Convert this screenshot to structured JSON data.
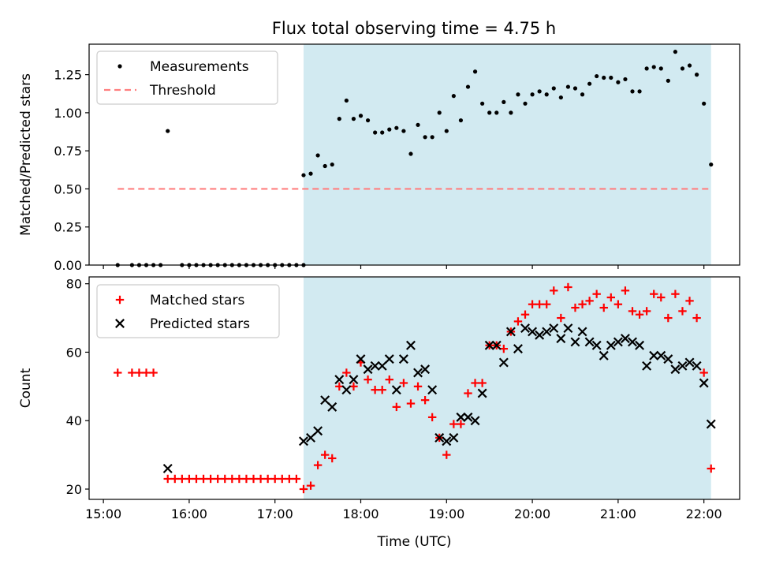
{
  "figure_title": "Flux total observing time = 4.75 h",
  "colors": {
    "shade": "#add8e6",
    "measurements": "#000000",
    "threshold": "#ff7f7f",
    "matched": "#ff0000",
    "predicted": "#000000"
  },
  "chart_data": [
    {
      "type": "scatter",
      "title": "Flux total observing time = 4.75 h",
      "ylabel": "Matched/Predicted stars",
      "xlabel": "",
      "xlim": [
        "14:50",
        "22:25"
      ],
      "ylim": [
        0,
        1.45
      ],
      "yticks": [
        0.0,
        0.25,
        0.5,
        0.75,
        1.0,
        1.25
      ],
      "ytick_labels": [
        "0.00",
        "0.25",
        "0.50",
        "0.75",
        "1.00",
        "1.25"
      ],
      "xticks": [
        "15:00",
        "16:00",
        "17:00",
        "18:00",
        "19:00",
        "20:00",
        "21:00",
        "22:00"
      ],
      "show_xtick_labels": false,
      "legend_position": "upper-left",
      "grid": false,
      "shaded_span": [
        "17:20",
        "22:05"
      ],
      "series": [
        {
          "name": "Measurements",
          "marker": "dot",
          "points": [
            [
              "15:10",
              0.0
            ],
            [
              "15:20",
              0.0
            ],
            [
              "15:25",
              0.0
            ],
            [
              "15:30",
              0.0
            ],
            [
              "15:35",
              0.0
            ],
            [
              "15:40",
              0.0
            ],
            [
              "15:45",
              0.88
            ],
            [
              "15:55",
              0.0
            ],
            [
              "16:00",
              0.0
            ],
            [
              "16:05",
              0.0
            ],
            [
              "16:10",
              0.0
            ],
            [
              "16:15",
              0.0
            ],
            [
              "16:20",
              0.0
            ],
            [
              "16:25",
              0.0
            ],
            [
              "16:30",
              0.0
            ],
            [
              "16:35",
              0.0
            ],
            [
              "16:40",
              0.0
            ],
            [
              "16:45",
              0.0
            ],
            [
              "16:50",
              0.0
            ],
            [
              "16:55",
              0.0
            ],
            [
              "17:00",
              0.0
            ],
            [
              "17:05",
              0.0
            ],
            [
              "17:10",
              0.0
            ],
            [
              "17:15",
              0.0
            ],
            [
              "17:20",
              0.0
            ],
            [
              "17:20",
              0.59
            ],
            [
              "17:25",
              0.6
            ],
            [
              "17:30",
              0.72
            ],
            [
              "17:35",
              0.65
            ],
            [
              "17:40",
              0.66
            ],
            [
              "17:45",
              0.96
            ],
            [
              "17:50",
              1.08
            ],
            [
              "17:55",
              0.96
            ],
            [
              "18:00",
              0.98
            ],
            [
              "18:05",
              0.95
            ],
            [
              "18:10",
              0.87
            ],
            [
              "18:15",
              0.87
            ],
            [
              "18:20",
              0.89
            ],
            [
              "18:25",
              0.9
            ],
            [
              "18:30",
              0.88
            ],
            [
              "18:35",
              0.73
            ],
            [
              "18:40",
              0.92
            ],
            [
              "18:45",
              0.84
            ],
            [
              "18:50",
              0.84
            ],
            [
              "18:55",
              1.0
            ],
            [
              "19:00",
              0.88
            ],
            [
              "19:05",
              1.11
            ],
            [
              "19:10",
              0.95
            ],
            [
              "19:15",
              1.17
            ],
            [
              "19:20",
              1.27
            ],
            [
              "19:25",
              1.06
            ],
            [
              "19:30",
              1.0
            ],
            [
              "19:35",
              1.0
            ],
            [
              "19:40",
              1.07
            ],
            [
              "19:45",
              1.0
            ],
            [
              "19:50",
              1.12
            ],
            [
              "19:55",
              1.06
            ],
            [
              "20:00",
              1.12
            ],
            [
              "20:05",
              1.14
            ],
            [
              "20:10",
              1.12
            ],
            [
              "20:15",
              1.16
            ],
            [
              "20:20",
              1.1
            ],
            [
              "20:25",
              1.17
            ],
            [
              "20:30",
              1.16
            ],
            [
              "20:35",
              1.12
            ],
            [
              "20:40",
              1.19
            ],
            [
              "20:45",
              1.24
            ],
            [
              "20:50",
              1.23
            ],
            [
              "20:55",
              1.23
            ],
            [
              "21:00",
              1.2
            ],
            [
              "21:05",
              1.22
            ],
            [
              "21:10",
              1.14
            ],
            [
              "21:15",
              1.14
            ],
            [
              "21:20",
              1.29
            ],
            [
              "21:25",
              1.3
            ],
            [
              "21:30",
              1.29
            ],
            [
              "21:35",
              1.21
            ],
            [
              "21:40",
              1.4
            ],
            [
              "21:45",
              1.29
            ],
            [
              "21:50",
              1.31
            ],
            [
              "21:55",
              1.25
            ],
            [
              "22:00",
              1.06
            ],
            [
              "22:05",
              0.66
            ]
          ]
        },
        {
          "name": "Threshold",
          "marker": "dashed-line",
          "points": [
            [
              "15:10",
              0.5
            ],
            [
              "22:05",
              0.5
            ]
          ]
        }
      ]
    },
    {
      "type": "scatter",
      "title": "",
      "ylabel": "Count",
      "xlabel": "Time (UTC)",
      "xlim": [
        "14:50",
        "22:25"
      ],
      "ylim": [
        17,
        82
      ],
      "yticks": [
        20,
        40,
        60,
        80
      ],
      "ytick_labels": [
        "20",
        "40",
        "60",
        "80"
      ],
      "xticks": [
        "15:00",
        "16:00",
        "17:00",
        "18:00",
        "19:00",
        "20:00",
        "21:00",
        "22:00"
      ],
      "show_xtick_labels": true,
      "legend_position": "upper-left",
      "grid": false,
      "shaded_span": [
        "17:20",
        "22:05"
      ],
      "series": [
        {
          "name": "Matched stars",
          "marker": "plus",
          "points": [
            [
              "15:10",
              54
            ],
            [
              "15:20",
              54
            ],
            [
              "15:25",
              54
            ],
            [
              "15:30",
              54
            ],
            [
              "15:35",
              54
            ],
            [
              "15:45",
              23
            ],
            [
              "15:50",
              23
            ],
            [
              "15:55",
              23
            ],
            [
              "16:00",
              23
            ],
            [
              "16:05",
              23
            ],
            [
              "16:10",
              23
            ],
            [
              "16:15",
              23
            ],
            [
              "16:20",
              23
            ],
            [
              "16:25",
              23
            ],
            [
              "16:30",
              23
            ],
            [
              "16:35",
              23
            ],
            [
              "16:40",
              23
            ],
            [
              "16:45",
              23
            ],
            [
              "16:50",
              23
            ],
            [
              "16:55",
              23
            ],
            [
              "17:00",
              23
            ],
            [
              "17:05",
              23
            ],
            [
              "17:10",
              23
            ],
            [
              "17:15",
              23
            ],
            [
              "17:20",
              20
            ],
            [
              "17:25",
              21
            ],
            [
              "17:30",
              27
            ],
            [
              "17:35",
              30
            ],
            [
              "17:40",
              29
            ],
            [
              "17:45",
              50
            ],
            [
              "17:50",
              54
            ],
            [
              "17:55",
              50
            ],
            [
              "18:00",
              57
            ],
            [
              "18:05",
              52
            ],
            [
              "18:10",
              49
            ],
            [
              "18:15",
              49
            ],
            [
              "18:20",
              52
            ],
            [
              "18:25",
              44
            ],
            [
              "18:30",
              51
            ],
            [
              "18:35",
              45
            ],
            [
              "18:40",
              50
            ],
            [
              "18:45",
              46
            ],
            [
              "18:50",
              41
            ],
            [
              "18:55",
              35
            ],
            [
              "19:00",
              30
            ],
            [
              "19:05",
              39
            ],
            [
              "19:10",
              39
            ],
            [
              "19:15",
              48
            ],
            [
              "19:20",
              51
            ],
            [
              "19:25",
              51
            ],
            [
              "19:30",
              62
            ],
            [
              "19:35",
              62
            ],
            [
              "19:40",
              61
            ],
            [
              "19:45",
              66
            ],
            [
              "19:50",
              69
            ],
            [
              "19:55",
              71
            ],
            [
              "20:00",
              74
            ],
            [
              "20:05",
              74
            ],
            [
              "20:10",
              74
            ],
            [
              "20:15",
              78
            ],
            [
              "20:20",
              70
            ],
            [
              "20:25",
              79
            ],
            [
              "20:30",
              73
            ],
            [
              "20:35",
              74
            ],
            [
              "20:40",
              75
            ],
            [
              "20:45",
              77
            ],
            [
              "20:50",
              73
            ],
            [
              "20:55",
              76
            ],
            [
              "21:00",
              74
            ],
            [
              "21:05",
              78
            ],
            [
              "21:10",
              72
            ],
            [
              "21:15",
              71
            ],
            [
              "21:20",
              72
            ],
            [
              "21:25",
              77
            ],
            [
              "21:30",
              76
            ],
            [
              "21:35",
              70
            ],
            [
              "21:40",
              77
            ],
            [
              "21:45",
              72
            ],
            [
              "21:50",
              75
            ],
            [
              "21:55",
              70
            ],
            [
              "22:00",
              54
            ],
            [
              "22:05",
              26
            ]
          ]
        },
        {
          "name": "Predicted stars",
          "marker": "cross",
          "points": [
            [
              "15:45",
              26
            ],
            [
              "17:20",
              34
            ],
            [
              "17:25",
              35
            ],
            [
              "17:30",
              37
            ],
            [
              "17:35",
              46
            ],
            [
              "17:40",
              44
            ],
            [
              "17:45",
              52
            ],
            [
              "17:50",
              49
            ],
            [
              "17:55",
              52
            ],
            [
              "18:00",
              58
            ],
            [
              "18:05",
              55
            ],
            [
              "18:10",
              56
            ],
            [
              "18:15",
              56
            ],
            [
              "18:20",
              58
            ],
            [
              "18:25",
              49
            ],
            [
              "18:30",
              58
            ],
            [
              "18:35",
              62
            ],
            [
              "18:40",
              54
            ],
            [
              "18:45",
              55
            ],
            [
              "18:50",
              49
            ],
            [
              "18:55",
              35
            ],
            [
              "19:00",
              34
            ],
            [
              "19:05",
              35
            ],
            [
              "19:10",
              41
            ],
            [
              "19:15",
              41
            ],
            [
              "19:20",
              40
            ],
            [
              "19:25",
              48
            ],
            [
              "19:30",
              62
            ],
            [
              "19:35",
              62
            ],
            [
              "19:40",
              57
            ],
            [
              "19:45",
              66
            ],
            [
              "19:50",
              61
            ],
            [
              "19:55",
              67
            ],
            [
              "20:00",
              66
            ],
            [
              "20:05",
              65
            ],
            [
              "20:10",
              66
            ],
            [
              "20:15",
              67
            ],
            [
              "20:20",
              64
            ],
            [
              "20:25",
              67
            ],
            [
              "20:30",
              63
            ],
            [
              "20:35",
              66
            ],
            [
              "20:40",
              63
            ],
            [
              "20:45",
              62
            ],
            [
              "20:50",
              59
            ],
            [
              "20:55",
              62
            ],
            [
              "21:00",
              63
            ],
            [
              "21:05",
              64
            ],
            [
              "21:10",
              63
            ],
            [
              "21:15",
              62
            ],
            [
              "21:20",
              56
            ],
            [
              "21:25",
              59
            ],
            [
              "21:30",
              59
            ],
            [
              "21:35",
              58
            ],
            [
              "21:40",
              55
            ],
            [
              "21:45",
              56
            ],
            [
              "21:50",
              57
            ],
            [
              "21:55",
              56
            ],
            [
              "22:00",
              51
            ],
            [
              "22:05",
              39
            ]
          ]
        }
      ]
    }
  ]
}
